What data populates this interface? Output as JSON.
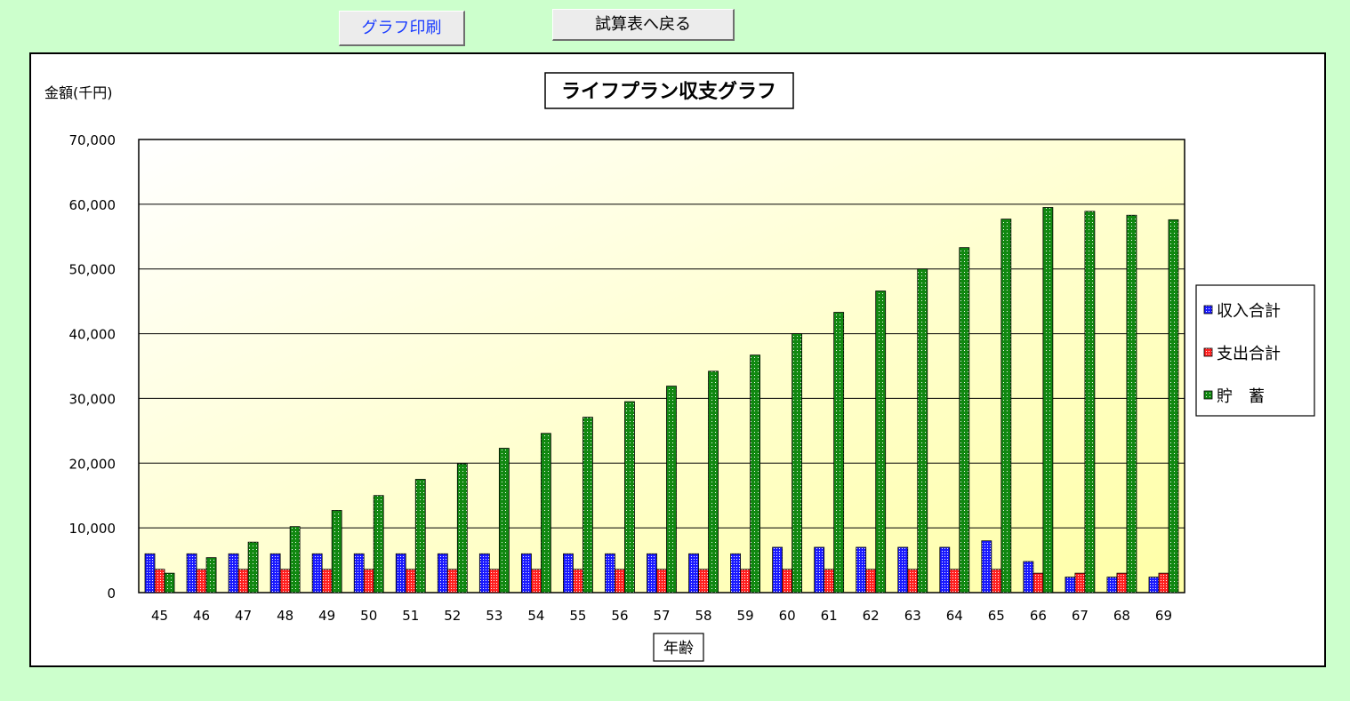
{
  "buttons": {
    "print_label": "グラフ印刷",
    "back_label": "試算表へ戻る"
  },
  "chart_data": {
    "type": "bar",
    "title": "ライフプラン収支グラフ",
    "ylabel": "金額(千円)",
    "xlabel": "年齢",
    "ylim": [
      0,
      70000
    ],
    "yticks": [
      "0",
      "10,000",
      "20,000",
      "30,000",
      "40,000",
      "50,000",
      "60,000",
      "70,000"
    ],
    "grid": true,
    "legend_position": "right",
    "categories": [
      "45",
      "46",
      "47",
      "48",
      "49",
      "50",
      "51",
      "52",
      "53",
      "54",
      "55",
      "56",
      "57",
      "58",
      "59",
      "60",
      "61",
      "62",
      "63",
      "64",
      "65",
      "66",
      "67",
      "68",
      "69"
    ],
    "series": [
      {
        "name": "収入合計",
        "color": "#1a1aff",
        "values": [
          6000,
          6000,
          6000,
          6000,
          6000,
          6000,
          6000,
          6000,
          6000,
          6000,
          6000,
          6000,
          6000,
          6000,
          6000,
          7000,
          7000,
          7000,
          7000,
          7000,
          8000,
          4800,
          2400,
          2400,
          2400
        ]
      },
      {
        "name": "支出合計",
        "color": "#ff2020",
        "values": [
          3600,
          3600,
          3600,
          3600,
          3600,
          3600,
          3600,
          3600,
          3600,
          3600,
          3600,
          3600,
          3600,
          3600,
          3600,
          3600,
          3600,
          3600,
          3600,
          3600,
          3600,
          3000,
          3000,
          3000,
          3000
        ]
      },
      {
        "name": "貯　蓄",
        "color": "#118811",
        "values": [
          3000,
          5400,
          7800,
          10200,
          12700,
          15000,
          17500,
          19900,
          22300,
          24600,
          27100,
          29500,
          31900,
          34200,
          36700,
          40000,
          43300,
          46600,
          50000,
          53300,
          57700,
          59500,
          58900,
          58300,
          57600
        ]
      }
    ]
  }
}
